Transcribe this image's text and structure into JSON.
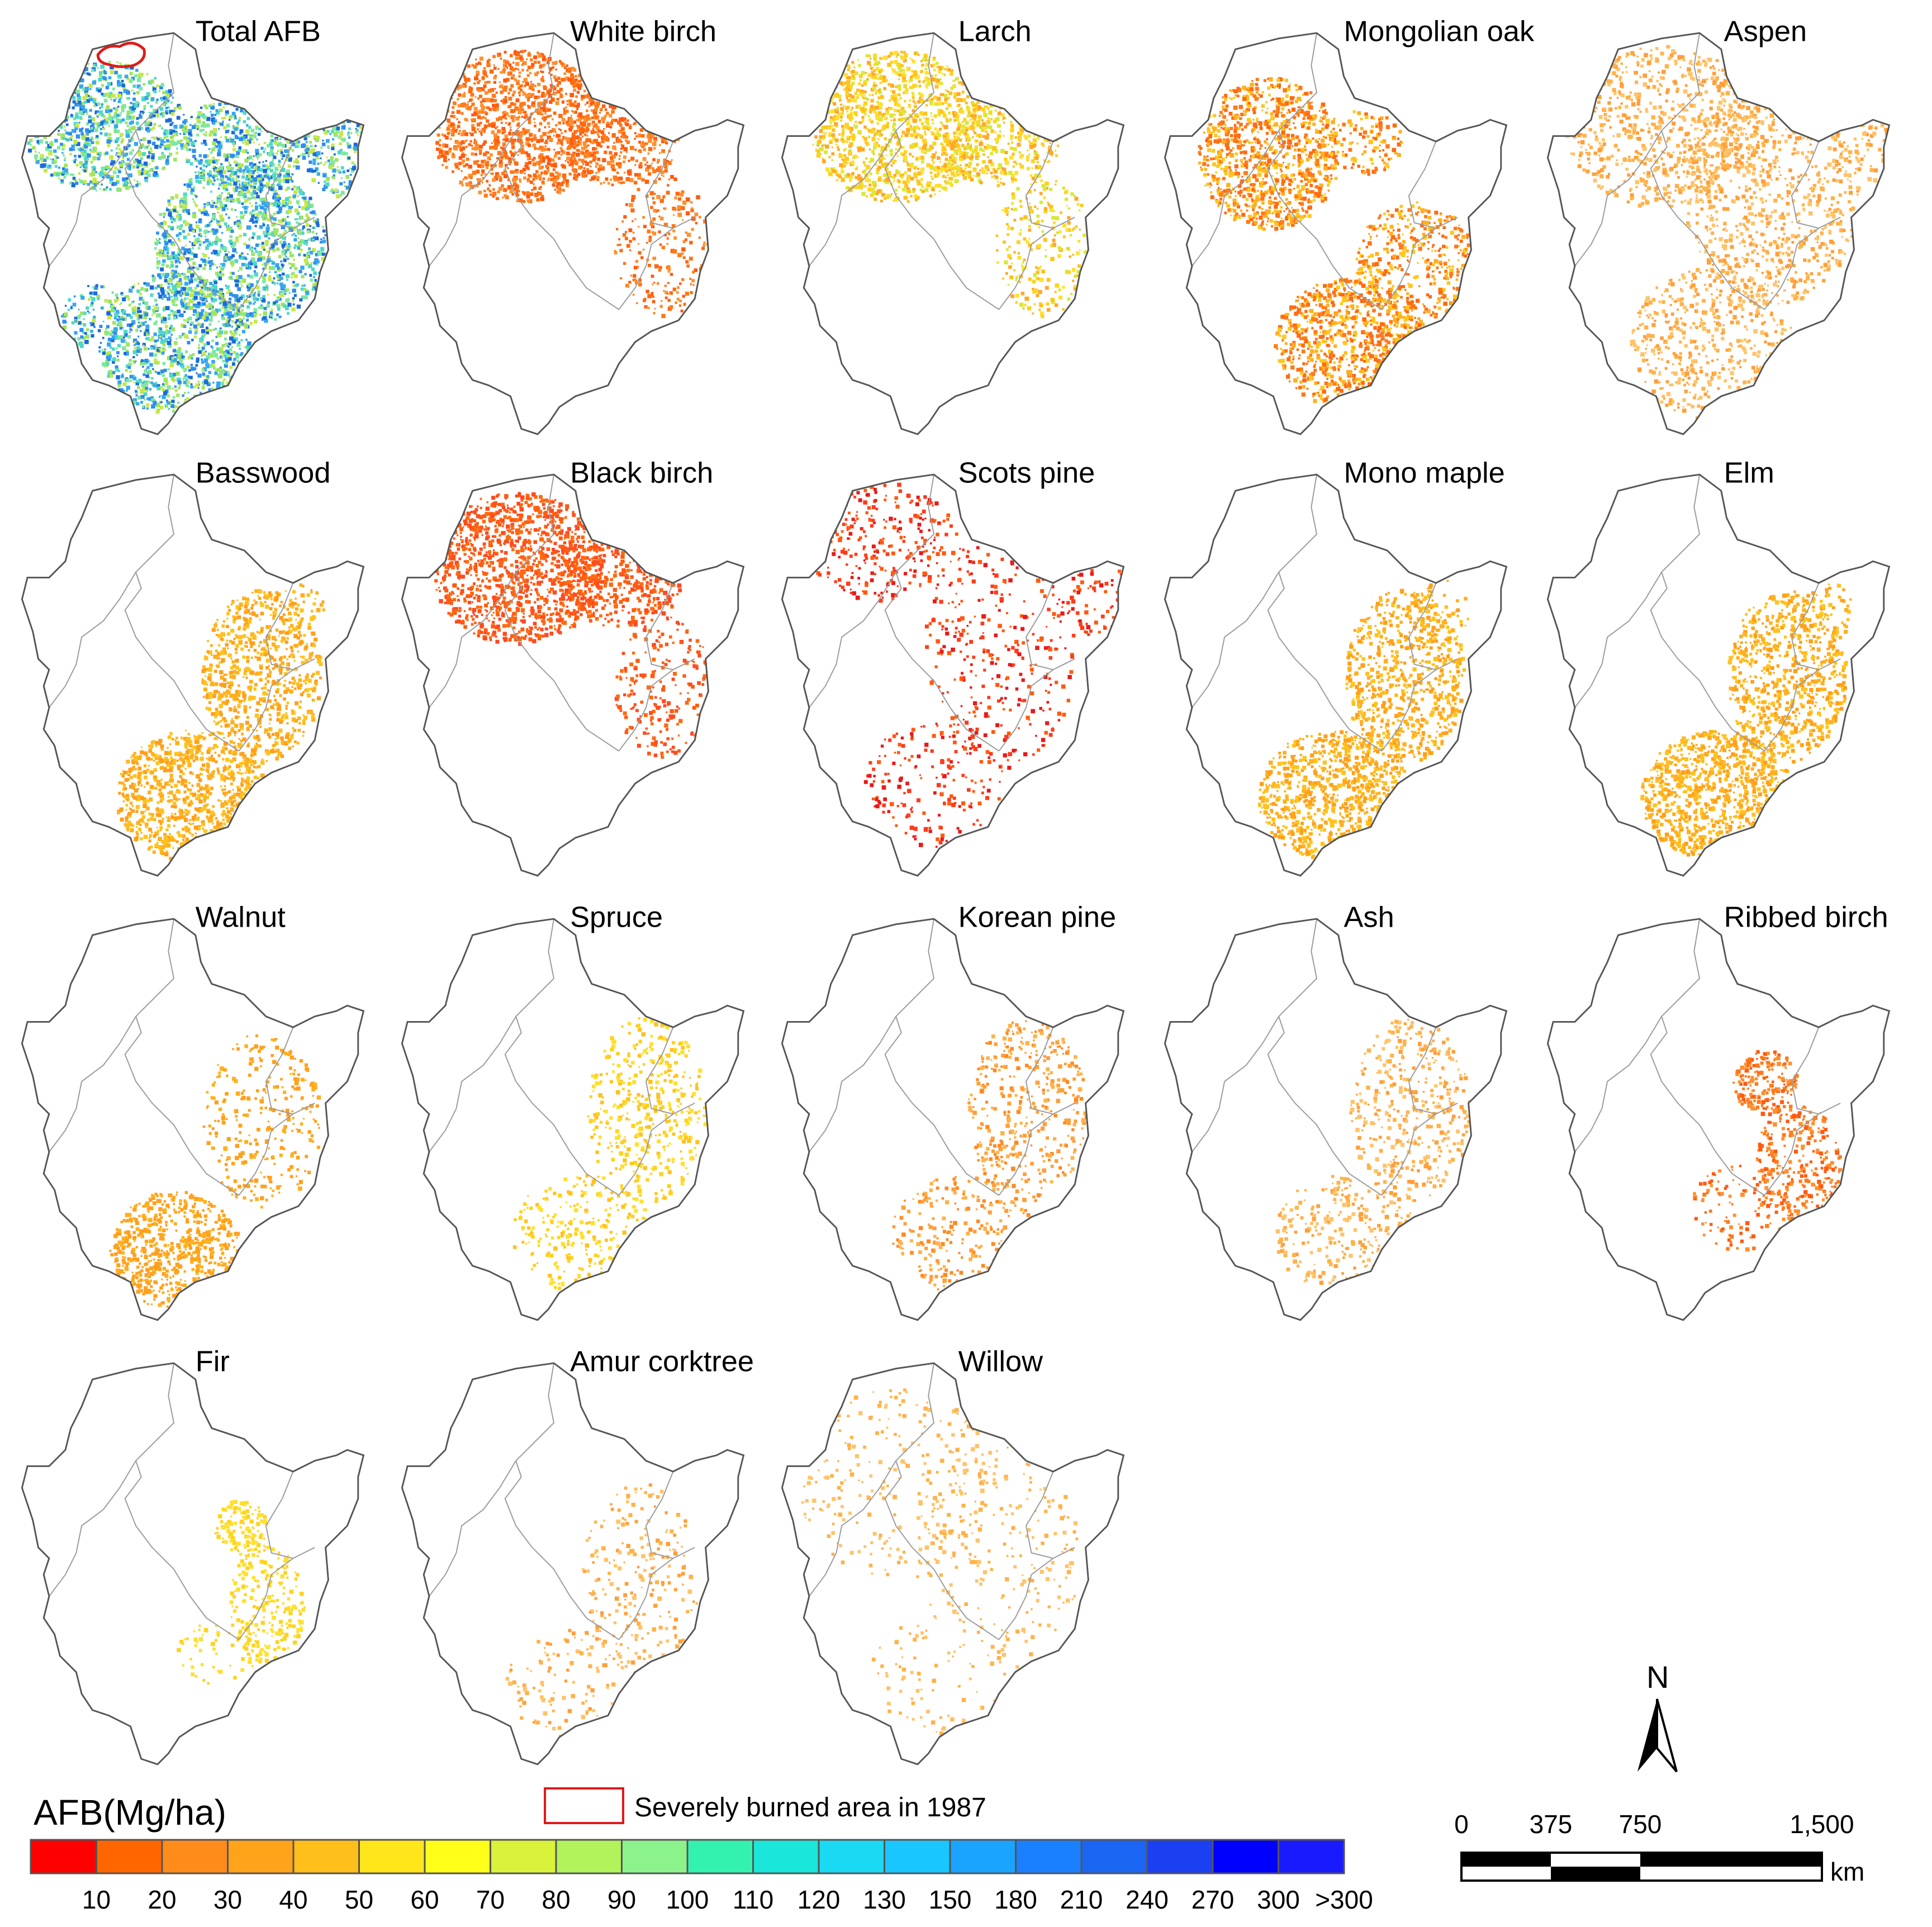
{
  "figure": {
    "panels": [
      {
        "title": "Total AFB",
        "species": "total",
        "palette": [
          "#2e8ef0",
          "#37a7f2",
          "#1c6ad9",
          "#7fe7a0",
          "#9ee55f",
          "#4ed8c9",
          "#c6e84a"
        ],
        "coverage": "total",
        "burn_outline": true
      },
      {
        "title": "White birch",
        "palette": [
          "#ff7a1a",
          "#ff6a10",
          "#ff9030",
          "#ff5a10"
        ],
        "coverage": "north"
      },
      {
        "title": "Larch",
        "palette": [
          "#ffd21e",
          "#ffc21e",
          "#ffe030",
          "#ffa82a",
          "#d9e83a"
        ],
        "coverage": "north"
      },
      {
        "title": "Mongolian oak",
        "palette": [
          "#ff7a1a",
          "#ffb01e",
          "#ffc61e",
          "#ff6a10"
        ],
        "coverage": "west_south"
      },
      {
        "title": "Aspen",
        "palette": [
          "#ffb24a",
          "#ffc36a",
          "#ff9f3a"
        ],
        "coverage": "all_sparse"
      },
      {
        "title": "Basswood",
        "palette": [
          "#ffb01e",
          "#ffc21e",
          "#ff9f1a"
        ],
        "coverage": "east_south"
      },
      {
        "title": "Black birch",
        "palette": [
          "#ff6a10",
          "#ff5a10",
          "#ff4a20"
        ],
        "coverage": "north"
      },
      {
        "title": "Scots pine",
        "palette": [
          "#ff3b1a",
          "#ff5a10",
          "#e81a1a"
        ],
        "coverage": "sparse"
      },
      {
        "title": "Mono maple",
        "palette": [
          "#ffb01e",
          "#ffc21e",
          "#ff9f1a"
        ],
        "coverage": "east_south"
      },
      {
        "title": "Elm",
        "palette": [
          "#ffb01e",
          "#ffc21e",
          "#ff9f1a"
        ],
        "coverage": "east_south"
      },
      {
        "title": "Walnut",
        "palette": [
          "#ffb01e",
          "#ffa21e",
          "#ff9f1a"
        ],
        "coverage": "east_south_light"
      },
      {
        "title": "Spruce",
        "palette": [
          "#ffd21e",
          "#ffe030",
          "#ffc21e"
        ],
        "coverage": "east_light"
      },
      {
        "title": "Korean pine",
        "palette": [
          "#ff9f3a",
          "#ff8a20",
          "#ffb24a"
        ],
        "coverage": "east_light"
      },
      {
        "title": "Ash",
        "palette": [
          "#ffb24a",
          "#ff9f3a",
          "#ffc36a"
        ],
        "coverage": "east_light"
      },
      {
        "title": "Ribbed birch",
        "palette": [
          "#ff5a10",
          "#ff7a1a",
          "#ff9030"
        ],
        "coverage": "east_patch"
      },
      {
        "title": "Fir",
        "palette": [
          "#ffd21e",
          "#ffe030"
        ],
        "coverage": "east_patch_yellow"
      },
      {
        "title": "Amur corktree",
        "palette": [
          "#ffb24a",
          "#ffc36a",
          "#ff9f3a"
        ],
        "coverage": "east_very_light"
      },
      {
        "title": "Willow",
        "palette": [
          "#ffb24a",
          "#ffc36a"
        ],
        "coverage": "all_very_light"
      }
    ]
  },
  "legend": {
    "title": "AFB(Mg/ha)",
    "colors": [
      "#ff0000",
      "#ff6600",
      "#ff8c1a",
      "#ffa31a",
      "#ffbf1a",
      "#ffe61a",
      "#ffff1a",
      "#d9f23a",
      "#b2f25a",
      "#8cf28c",
      "#33f2b0",
      "#1ae6d9",
      "#1ad9f2",
      "#1ac6ff",
      "#1aa3ff",
      "#1a80ff",
      "#1a66f2",
      "#1a40f2",
      "#0000ff",
      "#1a1aff"
    ],
    "ticks": [
      "10",
      "20",
      "30",
      "40",
      "50",
      "60",
      "70",
      "80",
      "90",
      "100",
      "110",
      "120",
      "130",
      "150",
      "180",
      "210",
      "240",
      "270",
      "300",
      ">300"
    ]
  },
  "burned_area": {
    "label": "Severely burned area in 1987",
    "outline_color": "#e01a1a"
  },
  "north_arrow": {
    "label": "N"
  },
  "scale_bar": {
    "labels": [
      "0",
      "375",
      "750",
      "1,500"
    ],
    "unit": "km"
  }
}
